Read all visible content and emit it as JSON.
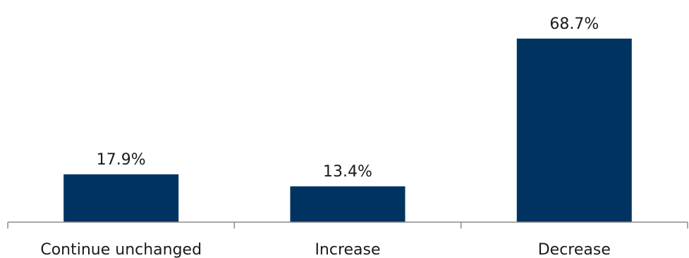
{
  "chart_data": {
    "type": "bar",
    "title": "",
    "xlabel": "",
    "ylabel": "",
    "categories": [
      "Continue unchanged",
      "Increase",
      "Decrease"
    ],
    "values": [
      17.9,
      13.4,
      68.7
    ],
    "value_labels": [
      "17.9%",
      "13.4%",
      "68.7%"
    ],
    "ylim": [
      0,
      70
    ],
    "grid": false,
    "legend": "none",
    "bar_color": "#003360",
    "axis_color": "#8c8c8c"
  }
}
